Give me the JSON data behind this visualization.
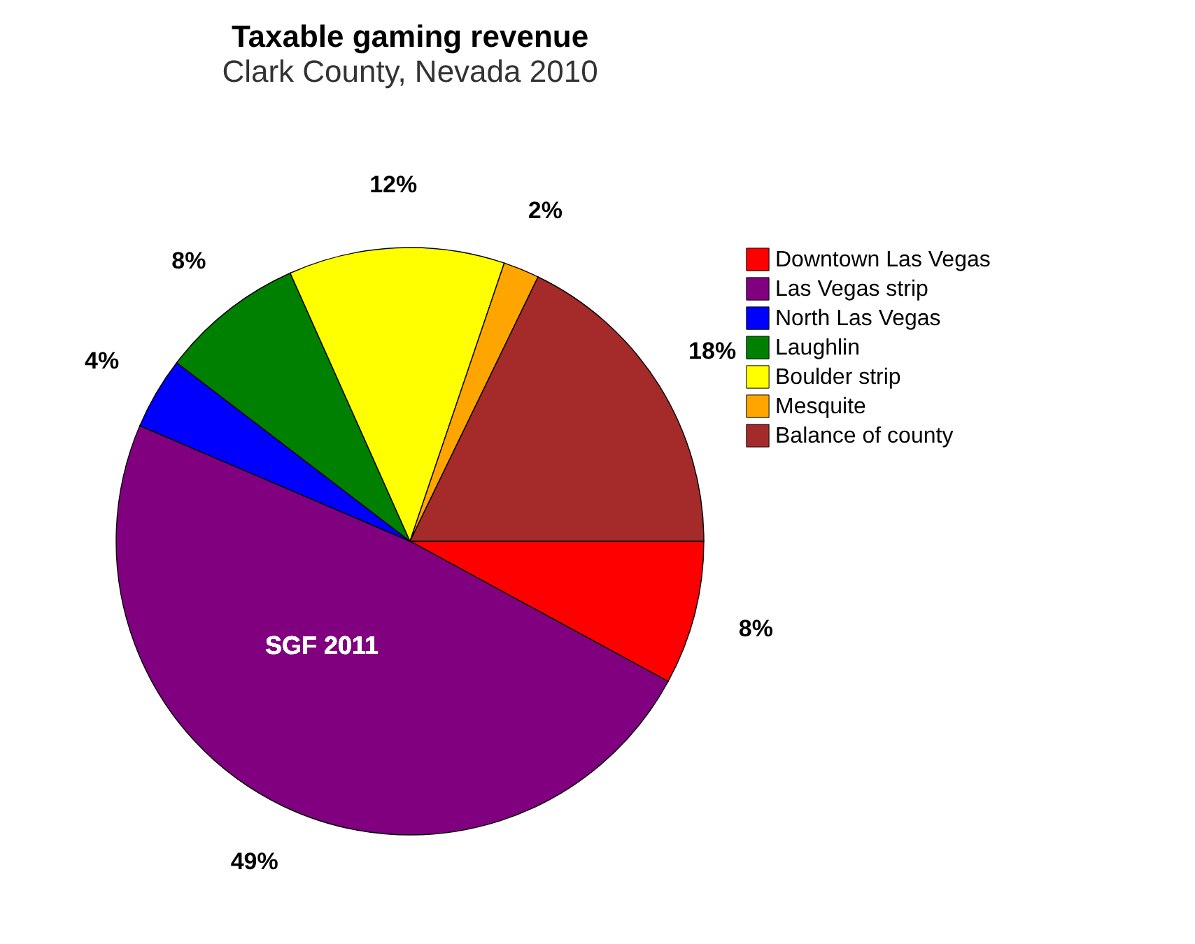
{
  "chart_data": {
    "type": "pie",
    "title": "Taxable gaming revenue",
    "subtitle": "Clark County, Nevada 2010",
    "categories": [
      "Downtown Las Vegas",
      "Las Vegas strip",
      "North Las Vegas",
      "Laughlin",
      "Boulder strip",
      "Mesquite",
      "Balance of county"
    ],
    "values": [
      8,
      49,
      4,
      8,
      12,
      2,
      18
    ],
    "colors": [
      "#ff0000",
      "#800080",
      "#0000ff",
      "#008000",
      "#ffff00",
      "#ffa500",
      "#a52a2a"
    ],
    "value_labels": [
      "8%",
      "49%",
      "4%",
      "8%",
      "12%",
      "2%",
      "18%"
    ],
    "annotations": [
      "SGF 2011"
    ],
    "legend": "top right"
  }
}
